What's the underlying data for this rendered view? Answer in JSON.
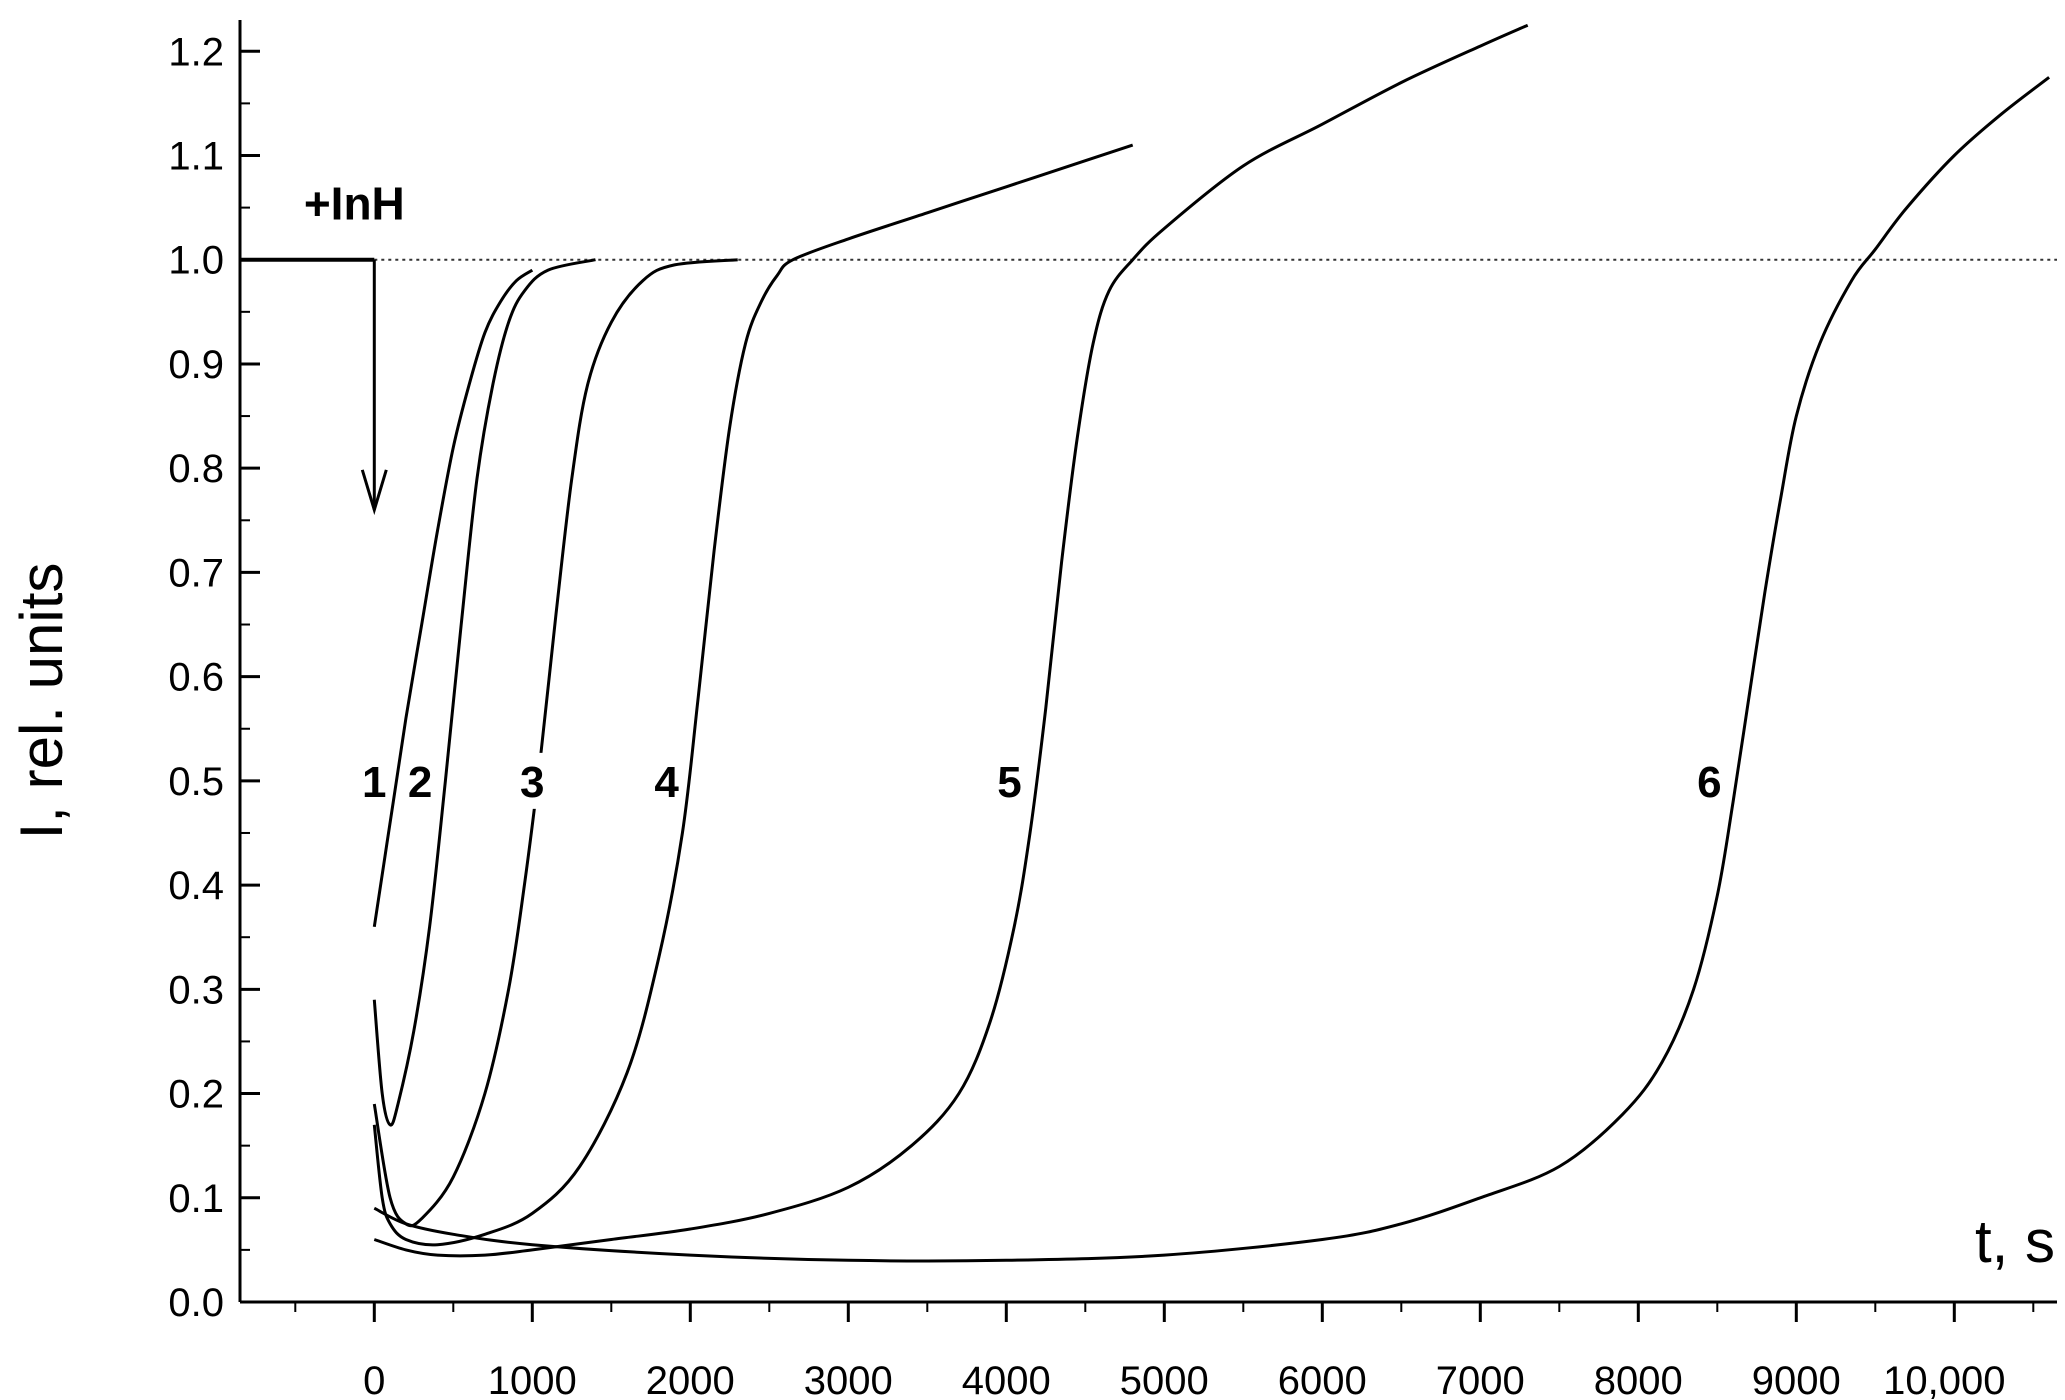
{
  "chart_data": {
    "type": "line",
    "title": "",
    "xlabel": "t, s",
    "ylabel": "I, rel. units",
    "xlim": [
      -850,
      10650
    ],
    "ylim": [
      0,
      1.23
    ],
    "x_ticks": [
      0,
      1000,
      2000,
      3000,
      4000,
      5000,
      6000,
      7000,
      8000,
      9000,
      10000
    ],
    "x_tick_labels": [
      "0",
      "1000",
      "2000",
      "3000",
      "4000",
      "5000",
      "6000",
      "7000",
      "8000",
      "9000",
      "10,000"
    ],
    "y_ticks": [
      0.0,
      0.1,
      0.2,
      0.3,
      0.4,
      0.5,
      0.6,
      0.7,
      0.8,
      0.9,
      1.0,
      1.1,
      1.2
    ],
    "y_tick_labels": [
      "0.0",
      "0.1",
      "0.2",
      "0.3",
      "0.4",
      "0.5",
      "0.6",
      "0.7",
      "0.8",
      "0.9",
      "1.0",
      "1.1",
      "1.2"
    ],
    "grid": false,
    "reference_line": {
      "y": 1.0,
      "style": "dotted"
    },
    "annotation": {
      "text": "+InH",
      "x": 0,
      "arrow_from_y": 1.0,
      "arrow_to_y": 0.76
    },
    "baseline_segment": {
      "x": [
        -850,
        0
      ],
      "y": [
        1.0,
        1.0
      ]
    },
    "series": [
      {
        "label": "1",
        "label_at": [
          0,
          0.5
        ],
        "points": [
          [
            0,
            0.36
          ],
          [
            60,
            0.42
          ],
          [
            120,
            0.48
          ],
          [
            200,
            0.56
          ],
          [
            300,
            0.65
          ],
          [
            400,
            0.74
          ],
          [
            500,
            0.82
          ],
          [
            600,
            0.88
          ],
          [
            700,
            0.93
          ],
          [
            800,
            0.96
          ],
          [
            900,
            0.98
          ],
          [
            1000,
            0.99
          ]
        ]
      },
      {
        "label": "2",
        "label_at": [
          290,
          0.5
        ],
        "points": [
          [
            0,
            0.29
          ],
          [
            50,
            0.2
          ],
          [
            100,
            0.17
          ],
          [
            150,
            0.19
          ],
          [
            250,
            0.26
          ],
          [
            350,
            0.36
          ],
          [
            450,
            0.5
          ],
          [
            550,
            0.65
          ],
          [
            650,
            0.79
          ],
          [
            750,
            0.88
          ],
          [
            850,
            0.94
          ],
          [
            950,
            0.97
          ],
          [
            1100,
            0.99
          ],
          [
            1400,
            1.0
          ]
        ]
      },
      {
        "label": "3",
        "label_at": [
          1000,
          0.5
        ],
        "points": [
          [
            0,
            0.19
          ],
          [
            100,
            0.1
          ],
          [
            200,
            0.075
          ],
          [
            300,
            0.08
          ],
          [
            500,
            0.12
          ],
          [
            700,
            0.2
          ],
          [
            850,
            0.3
          ],
          [
            950,
            0.4
          ],
          [
            1050,
            0.52
          ],
          [
            1150,
            0.66
          ],
          [
            1250,
            0.79
          ],
          [
            1350,
            0.88
          ],
          [
            1500,
            0.94
          ],
          [
            1700,
            0.98
          ],
          [
            1900,
            0.995
          ],
          [
            2300,
            1.0
          ]
        ]
      },
      {
        "label": "4",
        "label_at": [
          1850,
          0.5
        ],
        "points": [
          [
            0,
            0.17
          ],
          [
            50,
            0.1
          ],
          [
            100,
            0.075
          ],
          [
            200,
            0.06
          ],
          [
            400,
            0.055
          ],
          [
            700,
            0.065
          ],
          [
            1000,
            0.085
          ],
          [
            1300,
            0.13
          ],
          [
            1600,
            0.22
          ],
          [
            1800,
            0.33
          ],
          [
            1950,
            0.45
          ],
          [
            2050,
            0.58
          ],
          [
            2150,
            0.72
          ],
          [
            2250,
            0.84
          ],
          [
            2350,
            0.92
          ],
          [
            2450,
            0.96
          ],
          [
            2550,
            0.985
          ],
          [
            2650,
            1.0
          ],
          [
            3000,
            1.02
          ],
          [
            3500,
            1.045
          ],
          [
            4000,
            1.07
          ],
          [
            4500,
            1.095
          ],
          [
            4800,
            1.11
          ]
        ]
      },
      {
        "label": "5",
        "label_at": [
          4020,
          0.5
        ],
        "points": [
          [
            0,
            0.06
          ],
          [
            200,
            0.05
          ],
          [
            400,
            0.045
          ],
          [
            700,
            0.045
          ],
          [
            1000,
            0.05
          ],
          [
            1500,
            0.06
          ],
          [
            2000,
            0.07
          ],
          [
            2500,
            0.085
          ],
          [
            3000,
            0.11
          ],
          [
            3400,
            0.15
          ],
          [
            3700,
            0.2
          ],
          [
            3900,
            0.27
          ],
          [
            4050,
            0.36
          ],
          [
            4150,
            0.45
          ],
          [
            4250,
            0.57
          ],
          [
            4350,
            0.71
          ],
          [
            4450,
            0.83
          ],
          [
            4550,
            0.92
          ],
          [
            4650,
            0.97
          ],
          [
            4800,
            1.0
          ],
          [
            5000,
            1.03
          ],
          [
            5500,
            1.09
          ],
          [
            6000,
            1.13
          ],
          [
            6500,
            1.17
          ],
          [
            7000,
            1.205
          ],
          [
            7300,
            1.225
          ]
        ]
      },
      {
        "label": "6",
        "label_at": [
          8450,
          0.5
        ],
        "points": [
          [
            0,
            0.09
          ],
          [
            200,
            0.075
          ],
          [
            500,
            0.065
          ],
          [
            1000,
            0.055
          ],
          [
            2000,
            0.045
          ],
          [
            3000,
            0.04
          ],
          [
            4000,
            0.04
          ],
          [
            5000,
            0.045
          ],
          [
            6000,
            0.06
          ],
          [
            6500,
            0.075
          ],
          [
            7000,
            0.1
          ],
          [
            7500,
            0.13
          ],
          [
            7900,
            0.18
          ],
          [
            8150,
            0.23
          ],
          [
            8350,
            0.3
          ],
          [
            8500,
            0.39
          ],
          [
            8600,
            0.48
          ],
          [
            8700,
            0.58
          ],
          [
            8800,
            0.68
          ],
          [
            8900,
            0.77
          ],
          [
            9000,
            0.85
          ],
          [
            9150,
            0.92
          ],
          [
            9350,
            0.98
          ],
          [
            9500,
            1.01
          ],
          [
            9700,
            1.05
          ],
          [
            10000,
            1.1
          ],
          [
            10300,
            1.14
          ],
          [
            10600,
            1.175
          ]
        ]
      }
    ]
  }
}
